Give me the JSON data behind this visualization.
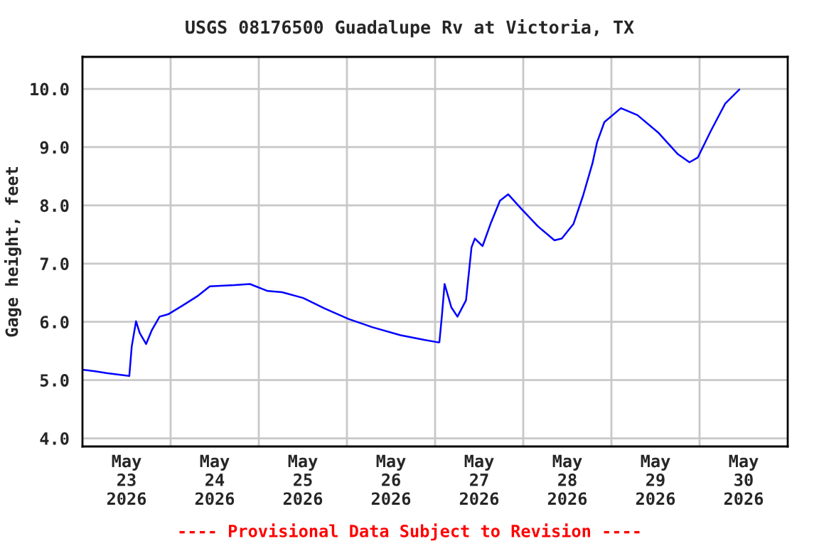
{
  "chart_data": {
    "type": "line",
    "title": "USGS 08176500 Guadalupe Rv at Victoria, TX",
    "ylabel": "Gage height, feet",
    "annotations": [
      "---- Provisional Data Subject to Revision ----"
    ],
    "x": [
      "2026-05-23T00:00",
      "2026-05-23T03:30",
      "2026-05-23T06:30",
      "2026-05-23T11:30",
      "2026-05-23T12:45",
      "2026-05-23T13:25",
      "2026-05-23T14:35",
      "2026-05-23T15:35",
      "2026-05-23T17:20",
      "2026-05-23T18:50",
      "2026-05-23T21:00",
      "2026-05-23T23:20",
      "2026-05-24T03:00",
      "2026-05-24T07:30",
      "2026-05-24T10:40",
      "2026-05-24T17:25",
      "2026-05-24T21:35",
      "2026-05-25T02:25",
      "2026-05-25T06:20",
      "2026-05-25T12:05",
      "2026-05-25T17:55",
      "2026-05-26T00:25",
      "2026-05-26T06:50",
      "2026-05-26T14:35",
      "2026-05-26T21:00",
      "2026-05-27T00:40",
      "2026-05-27T01:10",
      "2026-05-27T01:50",
      "2026-05-27T02:35",
      "2026-05-27T04:25",
      "2026-05-27T06:05",
      "2026-05-27T08:25",
      "2026-05-27T09:55",
      "2026-05-27T10:50",
      "2026-05-27T12:55",
      "2026-05-27T15:05",
      "2026-05-27T17:40",
      "2026-05-27T19:55",
      "2026-05-27T23:30",
      "2026-05-28T04:00",
      "2026-05-28T08:30",
      "2026-05-28T10:30",
      "2026-05-28T13:40",
      "2026-05-28T16:15",
      "2026-05-28T18:50",
      "2026-05-28T20:05",
      "2026-05-28T22:05",
      "2026-05-29T02:35",
      "2026-05-29T07:05",
      "2026-05-29T12:55",
      "2026-05-29T18:05",
      "2026-05-29T21:15",
      "2026-05-29T23:30",
      "2026-05-30T03:05",
      "2026-05-30T07:00",
      "2026-05-30T10:50"
    ],
    "series": [
      {
        "color": "#0000ff",
        "values": [
          5.18,
          5.15,
          5.12,
          5.08,
          5.07,
          5.58,
          6.01,
          5.81,
          5.62,
          5.85,
          6.09,
          6.13,
          6.27,
          6.45,
          6.61,
          6.63,
          6.65,
          6.53,
          6.51,
          6.41,
          6.23,
          6.05,
          5.91,
          5.77,
          5.69,
          5.65,
          5.65,
          6.09,
          6.65,
          6.25,
          6.09,
          6.37,
          7.28,
          7.43,
          7.3,
          7.68,
          8.08,
          8.19,
          7.94,
          7.64,
          7.4,
          7.43,
          7.68,
          8.16,
          8.72,
          9.08,
          9.43,
          9.67,
          9.55,
          9.24,
          8.88,
          8.74,
          8.82,
          9.28,
          9.75,
          9.99
        ]
      }
    ],
    "xlim": [
      "2026-05-23T00:00",
      "2026-05-31T00:00"
    ],
    "xticks": [
      {
        "value": "2026-05-23T12:00",
        "label": "May\n23\n2026"
      },
      {
        "value": "2026-05-24T00:00",
        "label": null
      },
      {
        "value": "2026-05-24T12:00",
        "label": "May\n24\n2026"
      },
      {
        "value": "2026-05-25T00:00",
        "label": null
      },
      {
        "value": "2026-05-25T12:00",
        "label": "May\n25\n2026"
      },
      {
        "value": "2026-05-26T00:00",
        "label": null
      },
      {
        "value": "2026-05-26T12:00",
        "label": "May\n26\n2026"
      },
      {
        "value": "2026-05-27T00:00",
        "label": null
      },
      {
        "value": "2026-05-27T12:00",
        "label": "May\n27\n2026"
      },
      {
        "value": "2026-05-28T00:00",
        "label": null
      },
      {
        "value": "2026-05-28T12:00",
        "label": "May\n28\n2026"
      },
      {
        "value": "2026-05-29T00:00",
        "label": null
      },
      {
        "value": "2026-05-29T12:00",
        "label": "May\n29\n2026"
      },
      {
        "value": "2026-05-30T00:00",
        "label": null
      },
      {
        "value": "2026-05-30T12:00",
        "label": "May\n30\n2026"
      }
    ],
    "ylim": [
      3.86,
      10.55
    ],
    "yticks": [
      {
        "value": 4,
        "label": "4.0"
      },
      {
        "value": 5,
        "label": "5.0"
      },
      {
        "value": 6,
        "label": "6.0"
      },
      {
        "value": 7,
        "label": "7.0"
      },
      {
        "value": 8,
        "label": "8.0"
      },
      {
        "value": 9,
        "label": "9.0"
      },
      {
        "value": 10,
        "label": "10.0"
      }
    ],
    "grid": true,
    "marker": "none",
    "line_style": "solid"
  }
}
